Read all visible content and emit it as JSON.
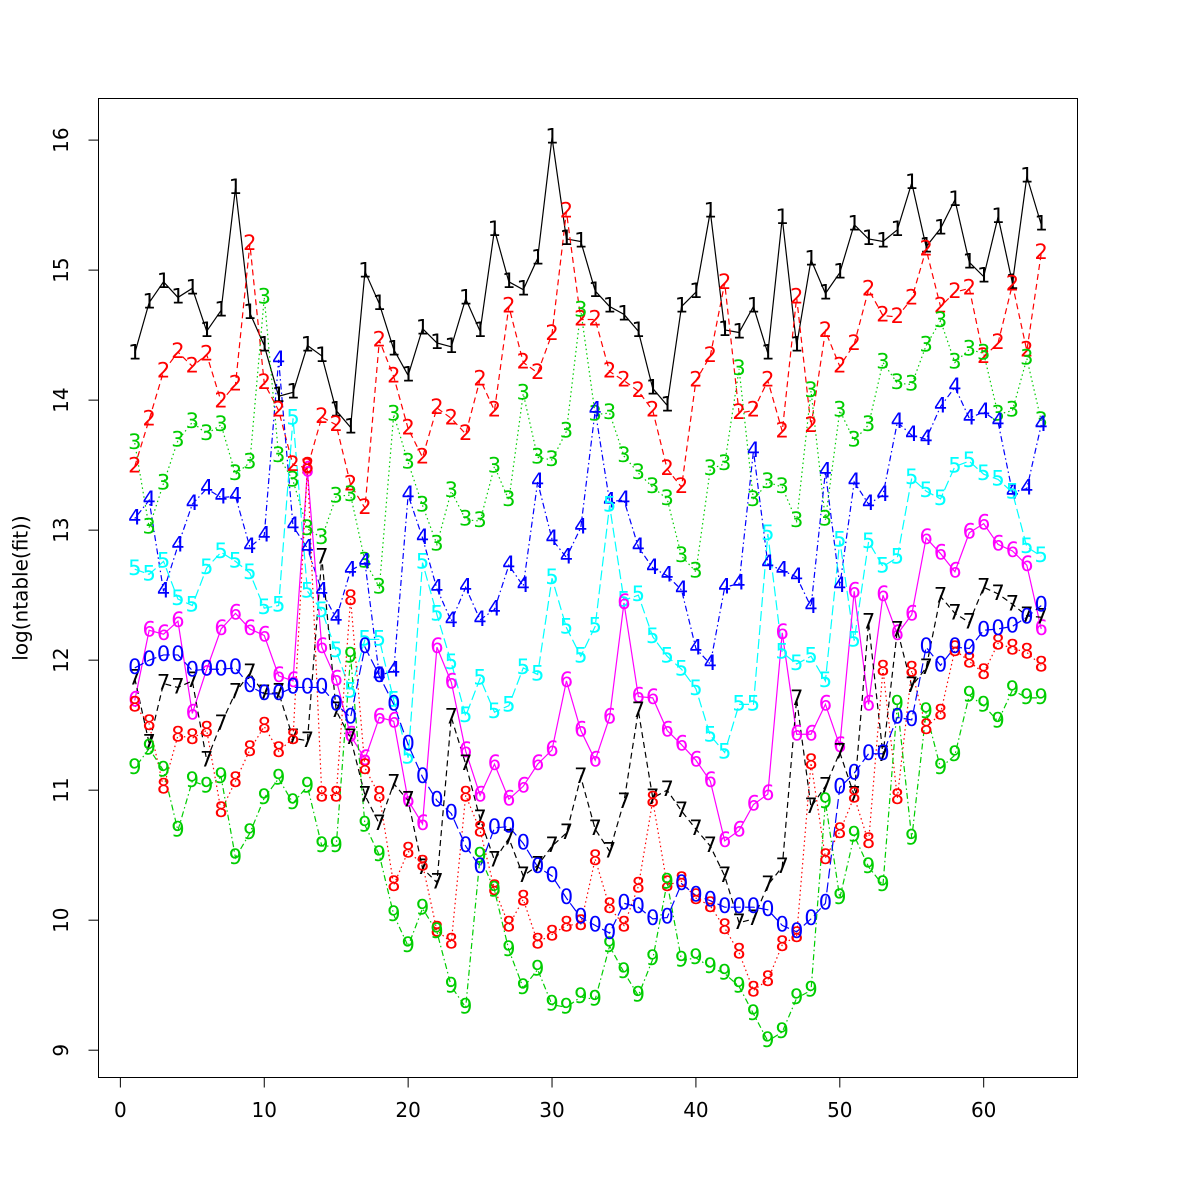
{
  "chart_data": {
    "type": "matplot",
    "ylabel": "log(ntable(fit))",
    "xlim": [
      -1.52,
      66.52
    ],
    "ylim": [
      8.79,
      16.32
    ],
    "xticks": [
      0,
      10,
      20,
      30,
      40,
      50,
      60
    ],
    "yticks": [
      9,
      10,
      11,
      12,
      13,
      14,
      15,
      16
    ],
    "x": [
      1,
      2,
      3,
      4,
      5,
      6,
      7,
      8,
      9,
      10,
      11,
      12,
      13,
      14,
      15,
      16,
      17,
      18,
      19,
      20,
      21,
      22,
      23,
      24,
      25,
      26,
      27,
      28,
      29,
      30,
      31,
      32,
      33,
      34,
      35,
      36,
      37,
      38,
      39,
      40,
      41,
      42,
      43,
      44,
      45,
      46,
      47,
      48,
      49,
      50,
      51,
      52,
      53,
      54,
      55,
      56,
      57,
      58,
      59,
      60,
      61,
      62,
      63,
      64
    ],
    "series": [
      {
        "name": "1",
        "color": "#000000",
        "linestyle": "solid",
        "values": [
          14.36,
          14.75,
          14.91,
          14.79,
          14.86,
          14.53,
          14.69,
          15.63,
          14.67,
          14.42,
          14.03,
          14.06,
          14.42,
          14.34,
          13.92,
          13.79,
          14.99,
          14.74,
          14.39,
          14.19,
          14.55,
          14.44,
          14.41,
          14.78,
          14.53,
          15.31,
          14.91,
          14.85,
          15.09,
          16.02,
          15.24,
          15.22,
          14.84,
          14.72,
          14.66,
          14.53,
          14.09,
          13.96,
          14.72,
          14.83,
          15.45,
          14.54,
          14.52,
          14.72,
          14.36,
          15.4,
          14.42,
          15.08,
          14.82,
          14.98,
          15.35,
          15.24,
          15.22,
          15.31,
          15.67,
          15.18,
          15.32,
          15.54,
          15.06,
          14.95,
          15.41,
          14.9,
          15.72,
          15.35
        ]
      },
      {
        "name": "2",
        "color": "#ff0000",
        "linestyle": "dashed",
        "values": [
          13.49,
          13.85,
          14.22,
          14.37,
          14.26,
          14.35,
          13.99,
          14.12,
          15.2,
          14.13,
          13.92,
          13.5,
          13.48,
          13.87,
          13.81,
          13.35,
          13.17,
          14.46,
          14.18,
          13.78,
          13.56,
          13.94,
          13.86,
          13.74,
          14.16,
          13.92,
          14.72,
          14.29,
          14.21,
          14.51,
          15.45,
          14.62,
          14.62,
          14.22,
          14.15,
          14.07,
          13.92,
          13.47,
          13.33,
          14.15,
          14.34,
          14.9,
          13.9,
          13.92,
          14.15,
          13.76,
          14.79,
          13.8,
          14.53,
          14.26,
          14.43,
          14.85,
          14.65,
          14.64,
          14.78,
          15.16,
          14.72,
          14.83,
          14.86,
          14.33,
          14.44,
          14.89,
          14.38,
          15.13
        ]
      },
      {
        "name": "3",
        "color": "#00cd00",
        "linestyle": "dotted",
        "values": [
          13.67,
          13.02,
          13.36,
          13.69,
          13.83,
          13.74,
          13.81,
          13.43,
          13.52,
          14.79,
          13.57,
          13.38,
          13.01,
          12.94,
          13.26,
          13.27,
          12.76,
          12.56,
          13.89,
          13.52,
          13.19,
          12.89,
          13.3,
          13.08,
          13.07,
          13.49,
          13.23,
          14.05,
          13.56,
          13.54,
          13.76,
          14.69,
          13.89,
          13.9,
          13.57,
          13.44,
          13.33,
          13.24,
          12.8,
          12.68,
          13.47,
          13.51,
          14.24,
          13.23,
          13.37,
          13.33,
          13.07,
          14.07,
          13.08,
          13.92,
          13.69,
          13.81,
          14.29,
          14.13,
          14.12,
          14.42,
          14.61,
          14.29,
          14.39,
          14.36,
          13.89,
          13.92,
          14.32,
          13.84
        ]
      },
      {
        "name": "4",
        "color": "#0000ff",
        "linestyle": "dotdash",
        "values": [
          13.09,
          13.23,
          12.53,
          12.88,
          13.2,
          13.32,
          13.25,
          13.26,
          12.87,
          12.96,
          14.31,
          13.03,
          12.86,
          12.53,
          12.32,
          12.69,
          12.75,
          11.88,
          11.92,
          13.27,
          12.94,
          12.55,
          12.3,
          12.56,
          12.31,
          12.39,
          12.73,
          12.57,
          13.37,
          12.93,
          12.79,
          13.02,
          13.92,
          13.22,
          13.23,
          12.87,
          12.71,
          12.65,
          12.54,
          12.09,
          11.97,
          12.56,
          12.59,
          13.61,
          12.74,
          12.69,
          12.64,
          12.41,
          13.45,
          12.57,
          13.37,
          13.2,
          13.27,
          13.83,
          13.73,
          13.7,
          13.95,
          14.1,
          13.86,
          13.91,
          13.83,
          13.29,
          13.32,
          13.81
        ]
      },
      {
        "name": "5",
        "color": "#00ffff",
        "linestyle": "longdash",
        "values": [
          12.7,
          12.66,
          12.76,
          12.47,
          12.42,
          12.71,
          12.83,
          12.76,
          12.67,
          12.4,
          12.42,
          13.86,
          12.53,
          12.38,
          12.07,
          11.76,
          12.16,
          12.16,
          11.69,
          11.25,
          12.75,
          12.35,
          11.98,
          11.57,
          11.86,
          11.6,
          11.65,
          11.94,
          11.89,
          12.63,
          12.25,
          12.03,
          12.26,
          13.19,
          12.46,
          12.5,
          12.18,
          12.03,
          11.93,
          11.78,
          11.42,
          11.29,
          11.66,
          11.66,
          12.97,
          12.06,
          11.97,
          12.03,
          11.84,
          12.92,
          12.15,
          12.91,
          12.72,
          12.79,
          13.4,
          13.3,
          13.24,
          13.49,
          13.53,
          13.43,
          13.39,
          13.29,
          12.87,
          12.8
        ]
      },
      {
        "name": "6",
        "color": "#ff00ff",
        "linestyle": "solid",
        "values": [
          11.69,
          12.23,
          12.2,
          12.3,
          11.59,
          11.93,
          12.24,
          12.36,
          12.24,
          12.19,
          11.88,
          11.84,
          13.46,
          12.1,
          11.85,
          11.42,
          11.24,
          11.56,
          11.53,
          10.92,
          10.74,
          12.1,
          11.83,
          11.3,
          10.96,
          11.2,
          10.93,
          11.03,
          11.2,
          11.31,
          11.84,
          11.46,
          11.23,
          11.56,
          12.44,
          11.72,
          11.71,
          11.46,
          11.35,
          11.23,
          11.07,
          10.61,
          10.69,
          10.89,
          10.97,
          12.21,
          11.43,
          11.43,
          11.66,
          11.34,
          12.53,
          11.66,
          12.5,
          12.2,
          12.35,
          12.94,
          12.82,
          12.68,
          12.98,
          13.05,
          12.89,
          12.84,
          12.73,
          12.24
        ]
      },
      {
        "name": "7",
        "color": "#000000",
        "linestyle": "dashed",
        "values": [
          11.86,
          11.36,
          11.82,
          11.79,
          11.84,
          11.23,
          11.51,
          11.75,
          11.9,
          11.74,
          11.75,
          11.4,
          11.38,
          12.79,
          11.61,
          11.4,
          10.96,
          10.74,
          11.05,
          10.92,
          10.4,
          10.29,
          11.56,
          11.2,
          10.78,
          10.46,
          10.63,
          10.34,
          10.42,
          10.57,
          10.67,
          11.1,
          10.7,
          10.53,
          10.91,
          11.61,
          10.94,
          11.0,
          10.84,
          10.7,
          10.57,
          10.34,
          9.98,
          10.01,
          10.27,
          10.41,
          11.7,
          10.87,
          11.03,
          11.29,
          10.96,
          12.29,
          11.27,
          12.23,
          11.8,
          11.94,
          12.49,
          12.36,
          12.29,
          12.56,
          12.51,
          12.43,
          12.34,
          12.33
        ]
      },
      {
        "name": "8",
        "color": "#ff0000",
        "linestyle": "dotted",
        "values": [
          11.65,
          11.51,
          11.02,
          11.42,
          11.4,
          11.46,
          10.84,
          11.07,
          11.31,
          11.49,
          11.3,
          11.4,
          13.49,
          10.96,
          10.96,
          12.47,
          11.17,
          10.96,
          10.27,
          10.53,
          10.43,
          9.92,
          9.83,
          10.96,
          10.69,
          10.24,
          9.96,
          10.16,
          9.83,
          9.89,
          9.96,
          9.97,
          10.47,
          10.1,
          9.96,
          10.26,
          10.92,
          10.27,
          10.3,
          10.17,
          10.11,
          9.94,
          9.75,
          9.46,
          9.54,
          9.81,
          9.88,
          11.21,
          10.48,
          10.68,
          10.95,
          10.6,
          11.93,
          10.94,
          11.92,
          11.48,
          11.59,
          12.08,
          11.99,
          11.9,
          12.13,
          12.09,
          12.06,
          11.96
        ]
      },
      {
        "name": "9",
        "color": "#00cd00",
        "linestyle": "dotdash",
        "values": [
          11.17,
          11.32,
          11.15,
          10.69,
          11.07,
          11.03,
          11.1,
          10.48,
          10.67,
          10.94,
          11.09,
          10.9,
          11.03,
          10.57,
          10.57,
          12.03,
          10.73,
          10.5,
          10.04,
          9.8,
          10.09,
          9.91,
          9.49,
          9.33,
          10.49,
          10.23,
          9.77,
          9.48,
          9.62,
          9.35,
          9.33,
          9.41,
          9.39,
          9.8,
          9.6,
          9.42,
          9.7,
          10.29,
          9.69,
          9.71,
          9.64,
          9.59,
          9.49,
          9.28,
          9.07,
          9.14,
          9.4,
          9.46,
          10.91,
          10.17,
          10.65,
          10.41,
          10.27,
          11.66,
          10.63,
          11.6,
          11.17,
          11.27,
          11.73,
          11.65,
          11.53,
          11.77,
          11.71,
          11.71
        ]
      },
      {
        "name": "0",
        "color": "#0000ff",
        "linestyle": "longdash",
        "values": [
          11.94,
          12.0,
          12.04,
          12.04,
          11.92,
          11.93,
          11.93,
          11.94,
          11.8,
          11.74,
          11.74,
          11.79,
          11.79,
          11.79,
          11.66,
          11.56,
          12.1,
          11.88,
          11.66,
          11.35,
          11.1,
          10.92,
          10.82,
          10.57,
          10.41,
          10.71,
          10.72,
          10.59,
          10.41,
          10.34,
          10.17,
          10.02,
          9.96,
          9.9,
          10.13,
          10.1,
          10.01,
          10.02,
          10.28,
          10.19,
          10.15,
          10.1,
          10.1,
          10.1,
          10.08,
          9.96,
          9.91,
          10.01,
          10.13,
          11.02,
          11.13,
          11.28,
          11.28,
          11.56,
          11.54,
          12.1,
          11.96,
          12.1,
          12.09,
          12.23,
          12.24,
          12.26,
          12.33,
          12.42
        ]
      }
    ]
  }
}
